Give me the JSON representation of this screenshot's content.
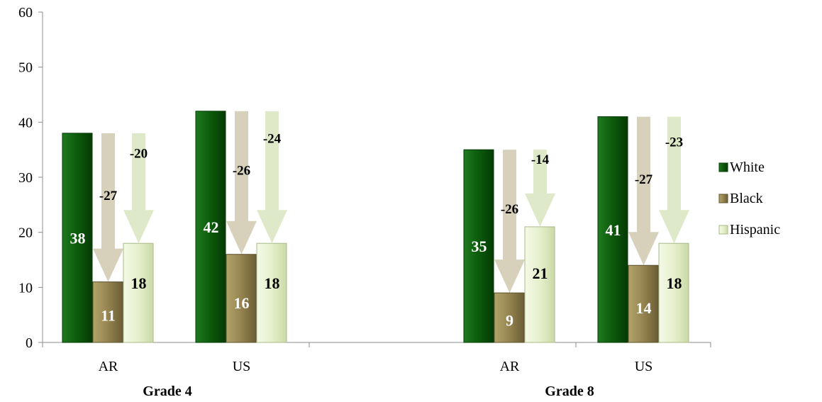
{
  "chart_data": {
    "type": "bar",
    "title": "",
    "xlabel": "",
    "ylabel": "",
    "ylim": [
      0,
      60
    ],
    "yticks": [
      0,
      10,
      20,
      30,
      40,
      50,
      60
    ],
    "grid": false,
    "legend_position": "right",
    "groups": [
      {
        "label": "Grade 4",
        "categories": [
          {
            "label": "AR",
            "values": [
              38,
              11,
              18
            ],
            "gaps": [
              "-27",
              "-20"
            ]
          },
          {
            "label": "US",
            "values": [
              42,
              16,
              18
            ],
            "gaps": [
              "-26",
              "-24"
            ]
          }
        ]
      },
      {
        "label": "Grade 8",
        "categories": [
          {
            "label": "AR",
            "values": [
              35,
              9,
              21
            ],
            "gaps": [
              "-26",
              "-14"
            ]
          },
          {
            "label": "US",
            "values": [
              41,
              14,
              18
            ],
            "gaps": [
              "-27",
              "-23"
            ]
          }
        ]
      }
    ],
    "series": [
      {
        "name": "White",
        "color": "#0f5a0f"
      },
      {
        "name": "Black",
        "color": "#9a8a55"
      },
      {
        "name": "Hispanic",
        "color": "#e4efc8"
      }
    ]
  }
}
